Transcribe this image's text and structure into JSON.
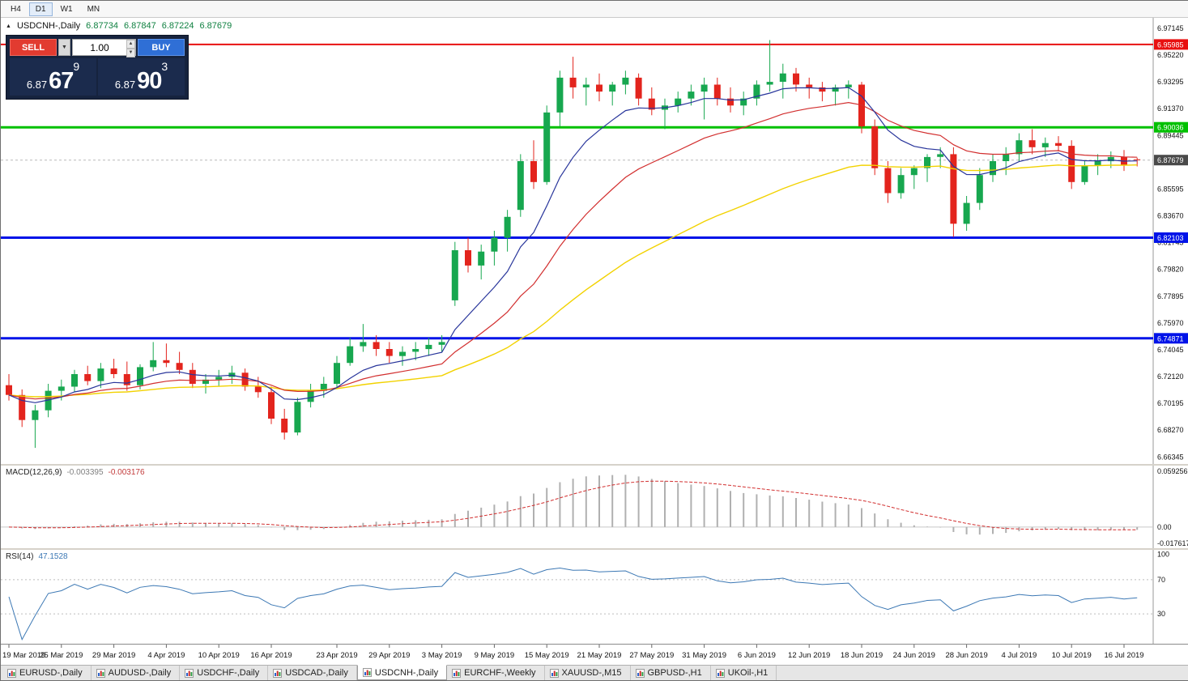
{
  "toolbar": {
    "timeframes": [
      {
        "label": "H4",
        "active": false
      },
      {
        "label": "D1",
        "active": true
      },
      {
        "label": "W1",
        "active": false
      },
      {
        "label": "MN",
        "active": false
      }
    ]
  },
  "icons": {
    "collapse": "▲",
    "dropdown": "▼",
    "spin_up": "▲",
    "spin_down": "▼"
  },
  "chart_header": {
    "symbol": "USDCNH-,Daily",
    "open": "6.87734",
    "high": "6.87847",
    "low": "6.87224",
    "close": "6.87679"
  },
  "trade_panel": {
    "sell_label": "SELL",
    "buy_label": "BUY",
    "volume": "1.00",
    "sell_price": {
      "prefix": "6.87",
      "big": "67",
      "sup": "9"
    },
    "buy_price": {
      "prefix": "6.87",
      "big": "90",
      "sup": "3"
    }
  },
  "chart_data": {
    "type": "candlestick",
    "symbol": "USDCNH-",
    "timeframe": "Daily",
    "colors": {
      "up": "#17a74f",
      "down": "#e3241d"
    },
    "price_axis": {
      "view_min": 6.6584,
      "view_max": 6.979,
      "tick_first": 6.66345,
      "tick_step": 0.01925,
      "tick_count": 17,
      "decimals": 5
    },
    "levels": [
      {
        "price": 6.95985,
        "label": "6.95985",
        "color": "#e81010",
        "width": 2
      },
      {
        "price": 6.90036,
        "label": "6.90036",
        "color": "#00c000",
        "width": 3
      },
      {
        "price": 6.82103,
        "label": "6.82103",
        "color": "#0013e8",
        "width": 3
      },
      {
        "price": 6.74871,
        "label": "6.74871",
        "color": "#0013e8",
        "width": 3
      }
    ],
    "current_price": {
      "value": 6.87679,
      "label": "6.87679",
      "badge_color": "#4a4a4a"
    },
    "moving_averages": [
      {
        "name": "fast-ma",
        "period": 8,
        "color": "#28359b",
        "width": 1.2
      },
      {
        "name": "medium-ma",
        "period": 18,
        "color": "#d22f2f",
        "width": 1.2
      },
      {
        "name": "slow-ma",
        "period": 42,
        "color": "#f2d200",
        "width": 1.4
      }
    ],
    "ohlc": [
      [
        6.715,
        6.723,
        6.704,
        6.708
      ],
      [
        6.708,
        6.712,
        6.685,
        6.69
      ],
      [
        6.69,
        6.701,
        6.67,
        6.697
      ],
      [
        6.697,
        6.716,
        6.692,
        6.711
      ],
      [
        6.711,
        6.719,
        6.704,
        6.714
      ],
      [
        6.714,
        6.726,
        6.71,
        6.723
      ],
      [
        6.723,
        6.729,
        6.715,
        6.718
      ],
      [
        6.718,
        6.731,
        6.713,
        6.727
      ],
      [
        6.727,
        6.734,
        6.72,
        6.723
      ],
      [
        6.723,
        6.732,
        6.711,
        6.715
      ],
      [
        6.715,
        6.73,
        6.712,
        6.728
      ],
      [
        6.728,
        6.746,
        6.725,
        6.733
      ],
      [
        6.733,
        6.745,
        6.728,
        6.731
      ],
      [
        6.731,
        6.739,
        6.723,
        6.726
      ],
      [
        6.726,
        6.731,
        6.713,
        6.716
      ],
      [
        6.716,
        6.723,
        6.709,
        6.719
      ],
      [
        6.719,
        6.726,
        6.714,
        6.721
      ],
      [
        6.721,
        6.729,
        6.716,
        6.724
      ],
      [
        6.724,
        6.727,
        6.711,
        6.714
      ],
      [
        6.714,
        6.721,
        6.706,
        6.71
      ],
      [
        6.71,
        6.714,
        6.687,
        6.691
      ],
      [
        6.691,
        6.698,
        6.676,
        6.681
      ],
      [
        6.681,
        6.706,
        6.679,
        6.703
      ],
      [
        6.703,
        6.716,
        6.699,
        6.711
      ],
      [
        6.711,
        6.721,
        6.706,
        6.716
      ],
      [
        6.716,
        6.736,
        6.713,
        6.731
      ],
      [
        6.731,
        6.749,
        6.729,
        6.743
      ],
      [
        6.743,
        6.759,
        6.739,
        6.746
      ],
      [
        6.746,
        6.751,
        6.736,
        6.741
      ],
      [
        6.741,
        6.746,
        6.731,
        6.736
      ],
      [
        6.736,
        6.743,
        6.729,
        6.739
      ],
      [
        6.739,
        6.746,
        6.733,
        6.741
      ],
      [
        6.741,
        6.749,
        6.736,
        6.744
      ],
      [
        6.744,
        6.751,
        6.739,
        6.746
      ],
      [
        6.776,
        6.818,
        6.772,
        6.812
      ],
      [
        6.812,
        6.821,
        6.796,
        6.801
      ],
      [
        6.801,
        6.816,
        6.791,
        6.811
      ],
      [
        6.811,
        6.826,
        6.801,
        6.821
      ],
      [
        6.821,
        6.841,
        6.811,
        6.836
      ],
      [
        6.841,
        6.881,
        6.836,
        6.876
      ],
      [
        6.876,
        6.891,
        6.856,
        6.861
      ],
      [
        6.861,
        6.916,
        6.859,
        6.911
      ],
      [
        6.911,
        6.941,
        6.901,
        6.936
      ],
      [
        6.936,
        6.951,
        6.921,
        6.929
      ],
      [
        6.929,
        6.936,
        6.916,
        6.931
      ],
      [
        6.931,
        6.939,
        6.919,
        6.926
      ],
      [
        6.926,
        6.933,
        6.916,
        6.931
      ],
      [
        6.931,
        6.941,
        6.924,
        6.936
      ],
      [
        6.936,
        6.939,
        6.916,
        6.921
      ],
      [
        6.921,
        6.929,
        6.909,
        6.913
      ],
      [
        6.913,
        6.921,
        6.899,
        6.916
      ],
      [
        6.916,
        6.926,
        6.911,
        6.921
      ],
      [
        6.921,
        6.931,
        6.916,
        6.926
      ],
      [
        6.926,
        6.936,
        6.906,
        6.931
      ],
      [
        6.931,
        6.936,
        6.916,
        6.921
      ],
      [
        6.921,
        6.929,
        6.911,
        6.916
      ],
      [
        6.916,
        6.926,
        6.909,
        6.921
      ],
      [
        6.921,
        6.934,
        6.916,
        6.931
      ],
      [
        6.931,
        6.963,
        6.926,
        6.933
      ],
      [
        6.933,
        6.946,
        6.921,
        6.939
      ],
      [
        6.939,
        6.943,
        6.926,
        6.931
      ],
      [
        6.931,
        6.936,
        6.921,
        6.929
      ],
      [
        6.929,
        6.933,
        6.919,
        6.926
      ],
      [
        6.926,
        6.931,
        6.916,
        6.929
      ],
      [
        6.929,
        6.934,
        6.921,
        6.931
      ],
      [
        6.931,
        6.933,
        6.896,
        6.901
      ],
      [
        6.901,
        6.906,
        6.866,
        6.871
      ],
      [
        6.871,
        6.876,
        6.846,
        6.853
      ],
      [
        6.853,
        6.871,
        6.849,
        6.866
      ],
      [
        6.866,
        6.873,
        6.856,
        6.871
      ],
      [
        6.871,
        6.881,
        6.861,
        6.879
      ],
      [
        6.879,
        6.886,
        6.871,
        6.881
      ],
      [
        6.881,
        6.886,
        6.8215,
        6.831
      ],
      [
        6.831,
        6.851,
        6.826,
        6.846
      ],
      [
        6.846,
        6.871,
        6.841,
        6.866
      ],
      [
        6.866,
        6.881,
        6.861,
        6.876
      ],
      [
        6.876,
        6.886,
        6.866,
        6.881
      ],
      [
        6.881,
        6.896,
        6.876,
        6.891
      ],
      [
        6.891,
        6.899,
        6.881,
        6.886
      ],
      [
        6.886,
        6.893,
        6.879,
        6.889
      ],
      [
        6.889,
        6.894,
        6.883,
        6.887
      ],
      [
        6.887,
        6.891,
        6.856,
        6.861
      ],
      [
        6.861,
        6.876,
        6.859,
        6.873
      ],
      [
        6.873,
        6.881,
        6.866,
        6.876
      ],
      [
        6.876,
        6.883,
        6.871,
        6.879
      ],
      [
        6.879,
        6.884,
        6.869,
        6.873
      ],
      [
        6.87734,
        6.87847,
        6.87224,
        6.87679
      ]
    ],
    "time_ticks": [
      [
        0,
        "19 Mar 2019"
      ],
      [
        4,
        "25 Mar 2019"
      ],
      [
        8,
        "29 Mar 2019"
      ],
      [
        12,
        "4 Apr 2019"
      ],
      [
        16,
        "10 Apr 2019"
      ],
      [
        20,
        "16 Apr 2019"
      ],
      [
        25,
        "23 Apr 2019"
      ],
      [
        29,
        "29 Apr 2019"
      ],
      [
        33,
        "3 May 2019"
      ],
      [
        37,
        "9 May 2019"
      ],
      [
        41,
        "15 May 2019"
      ],
      [
        45,
        "21 May 2019"
      ],
      [
        49,
        "27 May 2019"
      ],
      [
        53,
        "31 May 2019"
      ],
      [
        57,
        "6 Jun 2019"
      ],
      [
        61,
        "12 Jun 2019"
      ],
      [
        65,
        "18 Jun 2019"
      ],
      [
        69,
        "24 Jun 2019"
      ],
      [
        73,
        "28 Jun 2019"
      ],
      [
        77,
        "4 Jul 2019"
      ],
      [
        81,
        "10 Jul 2019"
      ],
      [
        85,
        "16 Jul 2019"
      ]
    ],
    "macd": {
      "label": "MACD(12,26,9)",
      "value_main": "-0.003395",
      "value_signal": "-0.003176",
      "axis_top_label": "0.059256",
      "axis_zero_label": "0.00",
      "axis_bottom_label": "-0.017617",
      "view_max": 0.064,
      "view_min": -0.022,
      "hist_color": "#b0b0b0",
      "signal_color": "#d22f2f"
    },
    "rsi": {
      "label": "RSI(14)",
      "value": "47.1528",
      "line_color": "#3c78b4",
      "view_max": 105,
      "view_min": -5,
      "levels": [
        {
          "value": 100,
          "label": "100",
          "dotted": false
        },
        {
          "value": 70,
          "label": "70",
          "dotted": true
        },
        {
          "value": 30,
          "label": "30",
          "dotted": true
        }
      ]
    }
  },
  "tabs": [
    {
      "label": "EURUSD-,Daily",
      "active": false
    },
    {
      "label": "AUDUSD-,Daily",
      "active": false
    },
    {
      "label": "USDCHF-,Daily",
      "active": false
    },
    {
      "label": "USDCAD-,Daily",
      "active": false
    },
    {
      "label": "USDCNH-,Daily",
      "active": true
    },
    {
      "label": "EURCHF-,Weekly",
      "active": false
    },
    {
      "label": "XAUUSD-,M15",
      "active": false
    },
    {
      "label": "GBPUSD-,H1",
      "active": false
    },
    {
      "label": "UKOil-,H1",
      "active": false
    }
  ]
}
